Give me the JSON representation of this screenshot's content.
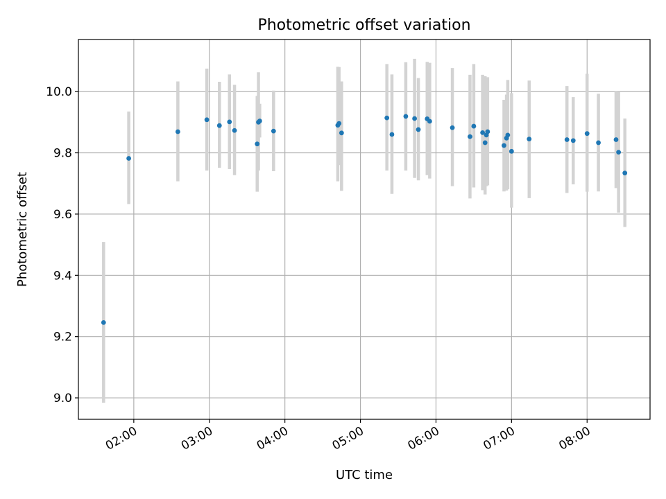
{
  "chart_data": {
    "type": "scatter",
    "title": "Photometric offset variation",
    "xlabel": "UTC time",
    "ylabel": "Photometric offset",
    "grid": true,
    "xlim": [
      "01:16",
      "08:50"
    ],
    "ylim": [
      8.93,
      10.17
    ],
    "xticks": [
      "02:00",
      "03:00",
      "04:00",
      "05:00",
      "06:00",
      "07:00",
      "08:00"
    ],
    "yticks": [
      9.0,
      9.2,
      9.4,
      9.6,
      9.8,
      10.0
    ],
    "ytick_labels": [
      "9.0",
      "9.2",
      "9.4",
      "9.6",
      "9.8",
      "10.0"
    ],
    "marker_color": "#1f77b4",
    "errorbar_color": "#d3d3d3",
    "points": [
      {
        "t": "01:36",
        "y": 9.246,
        "lo": 8.984,
        "hi": 9.509
      },
      {
        "t": "01:56",
        "y": 9.782,
        "lo": 9.633,
        "hi": 9.935
      },
      {
        "t": "02:35",
        "y": 9.869,
        "lo": 9.707,
        "hi": 10.033
      },
      {
        "t": "02:58",
        "y": 9.908,
        "lo": 9.742,
        "hi": 10.075
      },
      {
        "t": "03:08",
        "y": 9.889,
        "lo": 9.751,
        "hi": 10.032
      },
      {
        "t": "03:16",
        "y": 9.901,
        "lo": 9.747,
        "hi": 10.056
      },
      {
        "t": "03:20",
        "y": 9.873,
        "lo": 9.727,
        "hi": 10.022
      },
      {
        "t": "03:38",
        "y": 9.829,
        "lo": 9.673,
        "hi": 9.986
      },
      {
        "t": "03:39",
        "y": 9.9,
        "lo": 9.742,
        "hi": 10.063
      },
      {
        "t": "03:40",
        "y": 9.904,
        "lo": 9.85,
        "hi": 9.96
      },
      {
        "t": "03:51",
        "y": 9.871,
        "lo": 9.74,
        "hi": 10.003
      },
      {
        "t": "04:42",
        "y": 9.89,
        "lo": 9.707,
        "hi": 10.081
      },
      {
        "t": "04:43",
        "y": 9.896,
        "lo": 9.76,
        "hi": 10.08
      },
      {
        "t": "04:45",
        "y": 9.865,
        "lo": 9.676,
        "hi": 10.033
      },
      {
        "t": "05:21",
        "y": 9.914,
        "lo": 9.742,
        "hi": 10.09
      },
      {
        "t": "05:25",
        "y": 9.86,
        "lo": 9.666,
        "hi": 10.056
      },
      {
        "t": "05:36",
        "y": 9.919,
        "lo": 9.742,
        "hi": 10.096
      },
      {
        "t": "05:43",
        "y": 9.912,
        "lo": 9.718,
        "hi": 10.107
      },
      {
        "t": "05:46",
        "y": 9.876,
        "lo": 9.71,
        "hi": 10.044
      },
      {
        "t": "05:53",
        "y": 9.911,
        "lo": 9.727,
        "hi": 10.097
      },
      {
        "t": "05:55",
        "y": 9.903,
        "lo": 9.716,
        "hi": 10.094
      },
      {
        "t": "06:13",
        "y": 9.882,
        "lo": 9.691,
        "hi": 10.077
      },
      {
        "t": "06:27",
        "y": 9.853,
        "lo": 9.651,
        "hi": 10.055
      },
      {
        "t": "06:30",
        "y": 9.887,
        "lo": 9.687,
        "hi": 10.09
      },
      {
        "t": "06:37",
        "y": 9.866,
        "lo": 9.678,
        "hi": 10.055
      },
      {
        "t": "06:39",
        "y": 9.833,
        "lo": 9.664,
        "hi": 10.05
      },
      {
        "t": "06:40",
        "y": 9.858,
        "lo": 9.691,
        "hi": 10.034
      },
      {
        "t": "06:41",
        "y": 9.869,
        "lo": 9.694,
        "hi": 10.047
      },
      {
        "t": "06:54",
        "y": 9.824,
        "lo": 9.674,
        "hi": 9.973
      },
      {
        "t": "06:56",
        "y": 9.848,
        "lo": 9.677,
        "hi": 9.99
      },
      {
        "t": "06:57",
        "y": 9.858,
        "lo": 9.681,
        "hi": 10.038
      },
      {
        "t": "07:00",
        "y": 9.805,
        "lo": 9.621,
        "hi": 9.995
      },
      {
        "t": "07:14",
        "y": 9.845,
        "lo": 9.652,
        "hi": 10.036
      },
      {
        "t": "07:44",
        "y": 9.843,
        "lo": 9.669,
        "hi": 10.018
      },
      {
        "t": "07:49",
        "y": 9.84,
        "lo": 9.697,
        "hi": 9.982
      },
      {
        "t": "08:00",
        "y": 9.863,
        "lo": 9.673,
        "hi": 10.058
      },
      {
        "t": "08:09",
        "y": 9.833,
        "lo": 9.674,
        "hi": 9.993
      },
      {
        "t": "08:23",
        "y": 9.843,
        "lo": 9.685,
        "hi": 10.0
      },
      {
        "t": "08:25",
        "y": 9.802,
        "lo": 9.605,
        "hi": 9.998
      },
      {
        "t": "08:30",
        "y": 9.734,
        "lo": 9.558,
        "hi": 9.912
      }
    ]
  }
}
